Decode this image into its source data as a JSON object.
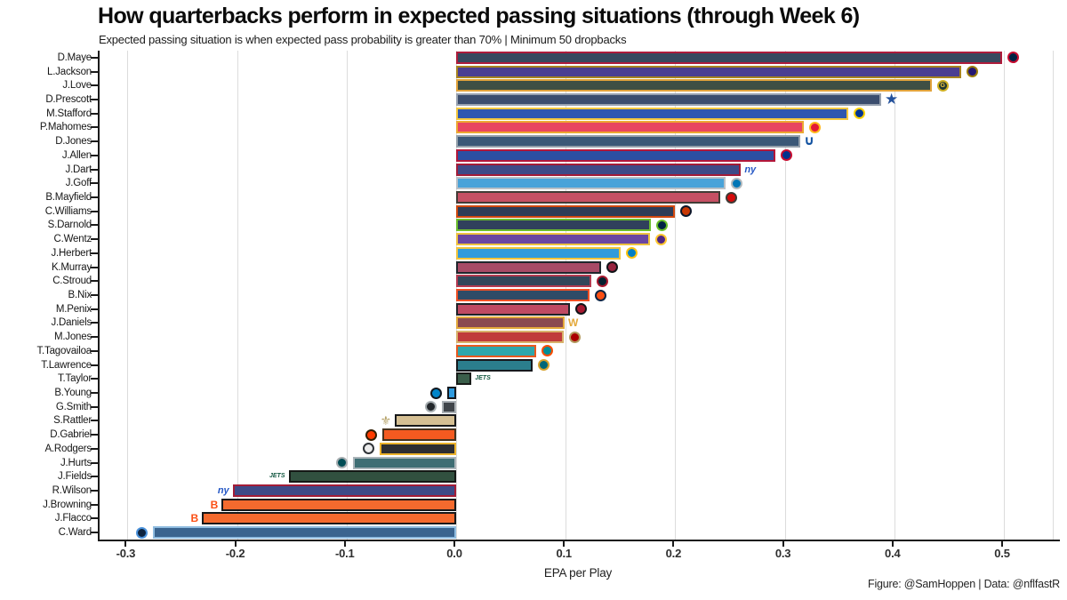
{
  "title": "How quarterbacks perform in expected passing situations (through Week 6)",
  "subtitle": "Expected passing situation is when expected pass probability is greater than 70% | Minimum 50 dropbacks",
  "caption": "Figure: @SamHoppen | Data: @nflfastR",
  "colors": {
    "axis": "#1a1a1a",
    "gridline": "#dcdcdc",
    "background": "#ffffff"
  },
  "chart_data": {
    "type": "bar",
    "orientation": "horizontal",
    "xlabel": "EPA per Play",
    "xlim": [
      -0.326,
      0.551
    ],
    "xticks": [
      -0.3,
      -0.2,
      -0.1,
      0.0,
      0.1,
      0.2,
      0.3,
      0.4,
      0.5
    ],
    "xtick_labels": [
      "-0.3",
      "-0.2",
      "-0.1",
      "0.0",
      "0.1",
      "0.2",
      "0.3",
      "0.4",
      "0.5"
    ],
    "grid": "vertical-major",
    "legend": "none",
    "bars": [
      {
        "player": "D.Maye",
        "team": "patriots",
        "value": 0.498,
        "fill": "#37495f",
        "stroke": "#ae1c3b",
        "logo": {
          "kind": "circle",
          "bg": "#002244",
          "ring": "#c60c30"
        }
      },
      {
        "player": "L.Jackson",
        "team": "ravens",
        "value": 0.461,
        "fill": "#4b3e92",
        "stroke": "#a8841f",
        "logo": {
          "kind": "circle",
          "bg": "#241773",
          "ring": "#9a7c0c"
        }
      },
      {
        "player": "J.Love",
        "team": "packers",
        "value": 0.434,
        "fill": "#3f4f44",
        "stroke": "#e2a33b",
        "logo": {
          "kind": "circle",
          "bg": "#203731",
          "ring": "#cfb023",
          "text": "G",
          "text_color": "#f3c73e"
        }
      },
      {
        "player": "D.Prescott",
        "team": "cowboys",
        "value": 0.388,
        "fill": "#3b4d6e",
        "stroke": "#97a1b0",
        "logo": {
          "kind": "glyph",
          "glyph": "★",
          "color": "#23519b",
          "size": 17
        }
      },
      {
        "player": "M.Stafford",
        "team": "rams",
        "value": 0.358,
        "fill": "#2e57af",
        "stroke": "#f3c73e",
        "logo": {
          "kind": "circle",
          "bg": "#003594",
          "ring": "#ffd100"
        }
      },
      {
        "player": "P.Mahomes",
        "team": "chiefs",
        "value": 0.317,
        "fill": "#e84560",
        "stroke": "#eca832",
        "logo": {
          "kind": "circle",
          "bg": "#e31837",
          "ring": "#ffb81c"
        }
      },
      {
        "player": "D.Jones",
        "team": "colts",
        "value": 0.314,
        "fill": "#3b5877",
        "stroke": "#94a0ab",
        "logo": {
          "kind": "glyph",
          "glyph": "∪",
          "color": "#1051a0",
          "size": 15
        }
      },
      {
        "player": "J.Allen",
        "team": "bills",
        "value": 0.291,
        "fill": "#2c4fa2",
        "stroke": "#b3173a",
        "logo": {
          "kind": "circle",
          "bg": "#00338d",
          "ring": "#c60c30"
        }
      },
      {
        "player": "J.Dart",
        "team": "giants",
        "value": 0.26,
        "fill": "#3e4a87",
        "stroke": "#a31c37",
        "logo": {
          "kind": "glyph",
          "glyph": "ny",
          "color": "#2457c5",
          "size": 11
        }
      },
      {
        "player": "J.Goff",
        "team": "lions",
        "value": 0.246,
        "fill": "#49a3d9",
        "stroke": "#b9c0c6",
        "logo": {
          "kind": "circle",
          "bg": "#0076b6",
          "ring": "#b0b7bc"
        }
      },
      {
        "player": "B.Mayfield",
        "team": "buccaneers",
        "value": 0.241,
        "fill": "#c65064",
        "stroke": "#423c36",
        "logo": {
          "kind": "circle",
          "bg": "#d50a0a",
          "ring": "#3e3a35"
        }
      },
      {
        "player": "C.Williams",
        "team": "bears",
        "value": 0.2,
        "fill": "#2e3c57",
        "stroke": "#d1480e",
        "logo": {
          "kind": "circle",
          "bg": "#c83803",
          "ring": "#0b162a"
        }
      },
      {
        "player": "S.Darnold",
        "team": "seahawks",
        "value": 0.178,
        "fill": "#30405c",
        "stroke": "#6cbe2c",
        "logo": {
          "kind": "circle",
          "bg": "#002244",
          "ring": "#69be28"
        }
      },
      {
        "player": "C.Wentz",
        "team": "vikings",
        "value": 0.177,
        "fill": "#6a46a2",
        "stroke": "#eec23f",
        "logo": {
          "kind": "circle",
          "bg": "#4f2683",
          "ring": "#ffc62f"
        }
      },
      {
        "player": "J.Herbert",
        "team": "chargers",
        "value": 0.15,
        "fill": "#309bdc",
        "stroke": "#f2c43b",
        "logo": {
          "kind": "circle",
          "bg": "#0080c6",
          "ring": "#ffc20e"
        }
      },
      {
        "player": "K.Murray",
        "team": "cardinals",
        "value": 0.132,
        "fill": "#a84a66",
        "stroke": "#20262c",
        "logo": {
          "kind": "circle",
          "bg": "#97233f",
          "ring": "#101418"
        }
      },
      {
        "player": "C.Stroud",
        "team": "texans",
        "value": 0.123,
        "fill": "#32475a",
        "stroke": "#b43a50",
        "logo": {
          "kind": "circle",
          "bg": "#03202f",
          "ring": "#a71930"
        }
      },
      {
        "player": "B.Nix",
        "team": "broncos",
        "value": 0.122,
        "fill": "#2f4b67",
        "stroke": "#f04f24",
        "logo": {
          "kind": "circle",
          "bg": "#fb4f14",
          "ring": "#0a2343"
        }
      },
      {
        "player": "M.Penix",
        "team": "falcons",
        "value": 0.104,
        "fill": "#bf4a63",
        "stroke": "#1e2227",
        "logo": {
          "kind": "circle",
          "bg": "#a71930",
          "ring": "#101418"
        }
      },
      {
        "player": "J.Daniels",
        "team": "commanders",
        "value": 0.099,
        "fill": "#8b4a51",
        "stroke": "#e3a93c",
        "logo": {
          "kind": "glyph",
          "glyph": "W",
          "color": "#e3a93c",
          "size": 12
        }
      },
      {
        "player": "M.Jones",
        "team": "49ers",
        "value": 0.098,
        "fill": "#c03b3b",
        "stroke": "#d8b26b",
        "logo": {
          "kind": "circle",
          "bg": "#aa0000",
          "ring": "#b3995d"
        }
      },
      {
        "player": "T.Tagovailoa",
        "team": "dolphins",
        "value": 0.073,
        "fill": "#2ea7ac",
        "stroke": "#e8591f",
        "logo": {
          "kind": "circle",
          "bg": "#008e97",
          "ring": "#fc4c02"
        }
      },
      {
        "player": "T.Lawrence",
        "team": "jaguars",
        "value": 0.07,
        "fill": "#2b7e8d",
        "stroke": "#16191d",
        "logo": {
          "kind": "circle",
          "bg": "#006778",
          "ring": "#d7a22a"
        }
      },
      {
        "player": "T.Taylor",
        "team": "jets",
        "value": 0.014,
        "fill": "#3a5e4a",
        "stroke": "#181c19",
        "logo": {
          "kind": "glyph",
          "glyph": "JETS",
          "color": "#125740",
          "size": 7
        }
      },
      {
        "player": "B.Young",
        "team": "panthers",
        "value": -0.008,
        "fill": "#2f9bdf",
        "stroke": "#15191e",
        "logo": {
          "kind": "circle",
          "bg": "#0085ca",
          "ring": "#101820"
        }
      },
      {
        "player": "G.Smith",
        "team": "raiders",
        "value": -0.013,
        "fill": "#40454a",
        "stroke": "#a9afb3",
        "logo": {
          "kind": "circle",
          "bg": "#23272b",
          "ring": "#a5acaf"
        }
      },
      {
        "player": "S.Rattler",
        "team": "saints",
        "value": -0.056,
        "fill": "#d5bf93",
        "stroke": "#17181a",
        "logo": {
          "kind": "glyph",
          "glyph": "⚜",
          "color": "#b6a269",
          "size": 14
        }
      },
      {
        "player": "D.Gabriel",
        "team": "browns",
        "value": -0.067,
        "fill": "#f45a20",
        "stroke": "#46311c",
        "logo": {
          "kind": "circle",
          "bg": "#ff3c00",
          "ring": "#311d00"
        }
      },
      {
        "player": "A.Rodgers",
        "team": "steelers",
        "value": -0.07,
        "fill": "#2e2e32",
        "stroke": "#edb32c",
        "logo": {
          "kind": "circle",
          "bg": "#ececec",
          "ring": "#2f3337"
        }
      },
      {
        "player": "J.Hurts",
        "team": "eagles",
        "value": -0.094,
        "fill": "#3e6e74",
        "stroke": "#aab4b9",
        "logo": {
          "kind": "circle",
          "bg": "#004c54",
          "ring": "#a5acaf"
        }
      },
      {
        "player": "J.Fields",
        "team": "jets",
        "value": -0.153,
        "fill": "#31503f",
        "stroke": "#141815",
        "logo": {
          "kind": "glyph",
          "glyph": "JETS",
          "color": "#125740",
          "size": 7
        }
      },
      {
        "player": "R.Wilson",
        "team": "giants",
        "value": -0.204,
        "fill": "#3e4a87",
        "stroke": "#a31c37",
        "logo": {
          "kind": "glyph",
          "glyph": "ny",
          "color": "#2457c5",
          "size": 11
        }
      },
      {
        "player": "J.Browning",
        "team": "bengals",
        "value": -0.214,
        "fill": "#f46a2e",
        "stroke": "#17181a",
        "logo": {
          "kind": "glyph",
          "glyph": "B",
          "color": "#fb4f14",
          "size": 12
        }
      },
      {
        "player": "J.Flacco",
        "team": "bengals",
        "value": -0.232,
        "fill": "#f46a2e",
        "stroke": "#17181a",
        "logo": {
          "kind": "glyph",
          "glyph": "B",
          "color": "#fb4f14",
          "size": 12
        }
      },
      {
        "player": "C.Ward",
        "team": "titans",
        "value": -0.277,
        "fill": "#3a648f",
        "stroke": "#8fbce0",
        "logo": {
          "kind": "circle",
          "bg": "#0c2340",
          "ring": "#4b92db"
        }
      }
    ]
  }
}
